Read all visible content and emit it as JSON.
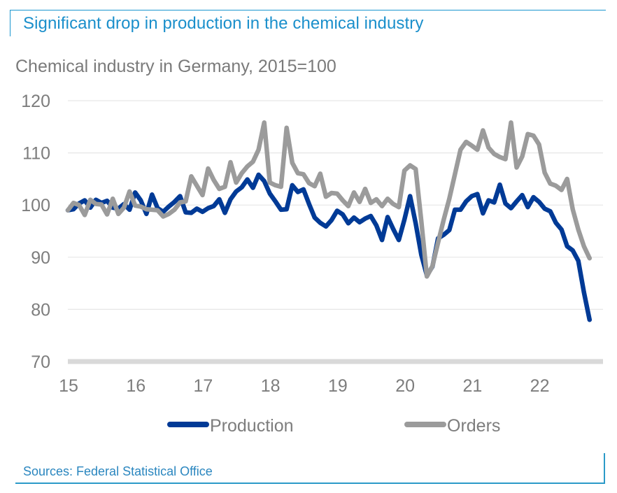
{
  "header": {
    "title": "Significant drop in production in the chemical industry",
    "subtitle": "Chemical industry in Germany, 2015=100"
  },
  "footer": {
    "source": "Sources: Federal Statistical Office"
  },
  "colors": {
    "accent": "#1a8fcb",
    "production": "#003a96",
    "orders": "#9b9b9b",
    "gridline": "#e6e6e6",
    "baseline": "#d9d9d9",
    "text": "#7d7d7d"
  },
  "chart_data": {
    "type": "line",
    "title": "Chemical industry in Germany, 2015=100",
    "xlabel": "",
    "ylabel": "",
    "ylim": [
      70,
      120
    ],
    "yticks": [
      70,
      80,
      90,
      100,
      110,
      120
    ],
    "ytick_labels": [
      "70",
      "80",
      "90",
      "100",
      "110",
      "120"
    ],
    "xlim": [
      2015.0,
      2022.95
    ],
    "xticks": [
      2015,
      2016,
      2017,
      2018,
      2019,
      2020,
      2021,
      2022
    ],
    "xtick_labels": [
      "15",
      "16",
      "17",
      "18",
      "19",
      "20",
      "21",
      "22"
    ],
    "x_start": "2015-01",
    "x_frequency": "monthly",
    "grid": true,
    "legend": {
      "placement": "bottom",
      "entries": [
        "Production",
        "Orders"
      ]
    },
    "series": [
      {
        "name": "Production",
        "values": [
          99,
          99.2,
          100.3,
          100.9,
          99.5,
          101,
          100.4,
          100.8,
          99.5,
          99.3,
          100.2,
          99.1,
          102.4,
          100.9,
          98.3,
          102,
          99.4,
          98.7,
          99.7,
          100.6,
          101.7,
          98.6,
          98.5,
          99.3,
          98.7,
          99.4,
          99.8,
          101.1,
          98.5,
          101.1,
          102.6,
          103.4,
          104.9,
          103.3,
          105.8,
          104.6,
          102.2,
          100.7,
          99.1,
          99.2,
          103.8,
          102.5,
          103,
          100.2,
          97.6,
          96.6,
          95.9,
          97.1,
          98.9,
          98.2,
          96.5,
          97.6,
          96.7,
          97.4,
          97.9,
          96.1,
          93.3,
          97.7,
          95.4,
          93.3,
          97.2,
          101.7,
          96.5,
          90.5,
          86.5,
          88.2,
          93.6,
          94.3,
          95.2,
          99.1,
          99.1,
          100.7,
          101.7,
          102.1,
          98.4,
          100.9,
          100.5,
          103.9,
          100.3,
          99.4,
          100.7,
          101.9,
          99.6,
          101.5,
          100.6,
          99.3,
          98.8,
          96.6,
          95.3,
          92.1,
          91.3,
          89.3,
          83.3,
          78
        ]
      },
      {
        "name": "Orders",
        "values": [
          99,
          100.4,
          100,
          98.1,
          101,
          100.2,
          100.1,
          98.2,
          101.2,
          98.3,
          99.5,
          102.6,
          99.9,
          99.7,
          99.2,
          99.1,
          99,
          97.8,
          98.3,
          99.1,
          100.5,
          100.7,
          105.5,
          103.7,
          101.9,
          107,
          104.8,
          103.1,
          103.5,
          108.2,
          104.3,
          106.1,
          107.4,
          108.3,
          110.6,
          115.8,
          104.3,
          103.8,
          103.5,
          114.8,
          108.1,
          106.1,
          105.9,
          104.2,
          103.6,
          106,
          101.6,
          102.3,
          102.2,
          100.9,
          99.8,
          102.4,
          100.6,
          103.1,
          100.4,
          101.1,
          99.8,
          101.2,
          100.2,
          99.6,
          106.6,
          107.6,
          106.9,
          97,
          86.3,
          88.3,
          92.8,
          97.2,
          101.2,
          105.9,
          110.6,
          112.1,
          111.4,
          110.6,
          114.3,
          111,
          109.8,
          109.2,
          108.8,
          115.8,
          107.2,
          109.3,
          113.6,
          113.3,
          111.6,
          106.2,
          104.1,
          103.7,
          102.9,
          105,
          99.2,
          95.3,
          92.1,
          89.8
        ]
      }
    ]
  }
}
